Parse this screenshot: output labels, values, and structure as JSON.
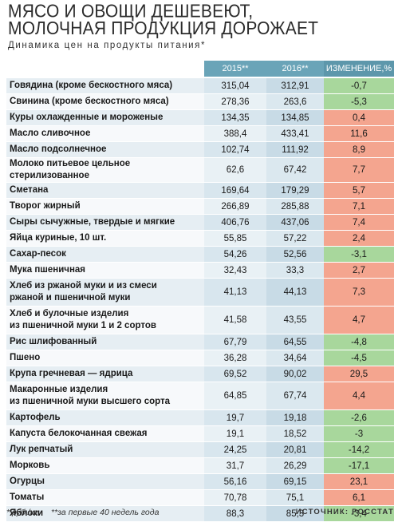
{
  "header": {
    "title_line1": "МЯСО И ОВОЩИ ДЕШЕВЕЮТ,",
    "title_line2": "МОЛОЧНАЯ ПРОДУКЦИЯ ДОРОЖАЕТ",
    "subtitle": "Динамика цен на продукты питания*"
  },
  "table": {
    "columns": [
      "",
      "2015**",
      "2016**",
      "ИЗМЕНЕНИЕ,%"
    ],
    "rows": [
      {
        "name": "Говядина (кроме бескостного мяса)",
        "v2015": "315,04",
        "v2016": "312,91",
        "change": "-0,7",
        "sign": "neg"
      },
      {
        "name": "Свинина (кроме бескостного мяса)",
        "v2015": "278,36",
        "v2016": "263,6",
        "change": "-5,3",
        "sign": "neg"
      },
      {
        "name": "Куры охлажденные и мороженые",
        "v2015": "134,35",
        "v2016": "134,85",
        "change": "0,4",
        "sign": "pos"
      },
      {
        "name": "Масло сливочное",
        "v2015": "388,4",
        "v2016": "433,41",
        "change": "11,6",
        "sign": "pos"
      },
      {
        "name": "Масло подсолнечное",
        "v2015": "102,74",
        "v2016": "111,92",
        "change": "8,9",
        "sign": "pos"
      },
      {
        "name": "Молоко питьевое цельное стерилизованное",
        "v2015": "62,6",
        "v2016": "67,42",
        "change": "7,7",
        "sign": "pos"
      },
      {
        "name": "Сметана",
        "v2015": "169,64",
        "v2016": "179,29",
        "change": "5,7",
        "sign": "pos"
      },
      {
        "name": "Творог жирный",
        "v2015": "266,89",
        "v2016": "285,88",
        "change": "7,1",
        "sign": "pos"
      },
      {
        "name": "Сыры сычужные, твердые и мягкие",
        "v2015": "406,76",
        "v2016": "437,06",
        "change": "7,4",
        "sign": "pos"
      },
      {
        "name": "Яйца куриные, 10 шт.",
        "v2015": "55,85",
        "v2016": "57,22",
        "change": "2,4",
        "sign": "pos"
      },
      {
        "name": "Сахар-песок",
        "v2015": "54,26",
        "v2016": "52,56",
        "change": "-3,1",
        "sign": "neg"
      },
      {
        "name": "Мука пшеничная",
        "v2015": "32,43",
        "v2016": "33,3",
        "change": "2,7",
        "sign": "pos"
      },
      {
        "name": "Хлеб из ржаной муки и из смеси ржаной и пшеничной муки",
        "line1": "Хлеб из ржаной муки и из смеси",
        "line2": "ржаной и пшеничной муки",
        "v2015": "41,13",
        "v2016": "44,13",
        "change": "7,3",
        "sign": "pos",
        "tall": true
      },
      {
        "name": "Хлеб и булочные изделия из пшеничной муки 1 и 2 сортов",
        "line1": "Хлеб и булочные изделия",
        "line2": "из пшеничной муки 1 и 2 сортов",
        "v2015": "41,58",
        "v2016": "43,55",
        "change": "4,7",
        "sign": "pos",
        "tall": true
      },
      {
        "name": "Рис шлифованный",
        "v2015": "67,79",
        "v2016": "64,55",
        "change": "-4,8",
        "sign": "neg"
      },
      {
        "name": "Пшено",
        "v2015": "36,28",
        "v2016": "34,64",
        "change": "-4,5",
        "sign": "neg"
      },
      {
        "name": "Крупа гречневая — ядрица",
        "v2015": "69,52",
        "v2016": "90,02",
        "change": "29,5",
        "sign": "pos"
      },
      {
        "name": "Макаронные изделия из пшеничной муки высшего сорта",
        "line1": "Макаронные изделия",
        "line2": "из пшеничной муки высшего сорта",
        "v2015": "64,85",
        "v2016": "67,74",
        "change": "4,4",
        "sign": "pos",
        "tall": true
      },
      {
        "name": "Картофель",
        "v2015": "19,7",
        "v2016": "19,18",
        "change": "-2,6",
        "sign": "neg"
      },
      {
        "name": "Капуста белокочанная свежая",
        "v2015": "19,1",
        "v2016": "18,52",
        "change": "-3",
        "sign": "neg"
      },
      {
        "name": "Лук репчатый",
        "v2015": "24,25",
        "v2016": "20,81",
        "change": "-14,2",
        "sign": "neg"
      },
      {
        "name": "Морковь",
        "v2015": "31,7",
        "v2016": "26,29",
        "change": "-17,1",
        "sign": "neg"
      },
      {
        "name": "Огурцы",
        "v2015": "56,16",
        "v2016": "69,15",
        "change": "23,1",
        "sign": "pos"
      },
      {
        "name": "Томаты",
        "v2015": "70,78",
        "v2016": "75,1",
        "change": "6,1",
        "sign": "pos"
      },
      {
        "name": "Яблоки",
        "v2015": "88,3",
        "v2016": "85,3",
        "change": "-3,4",
        "sign": "neg"
      }
    ]
  },
  "footer": {
    "note1": "* руб./кг",
    "note2": "**за первые 40 недель года",
    "source": "ИСТОЧНИК: РОССТАТ"
  },
  "colors": {
    "header_bg": "#6aa4b8",
    "increase_bg": "#f4a58f",
    "decrease_bg": "#a8d79c"
  }
}
